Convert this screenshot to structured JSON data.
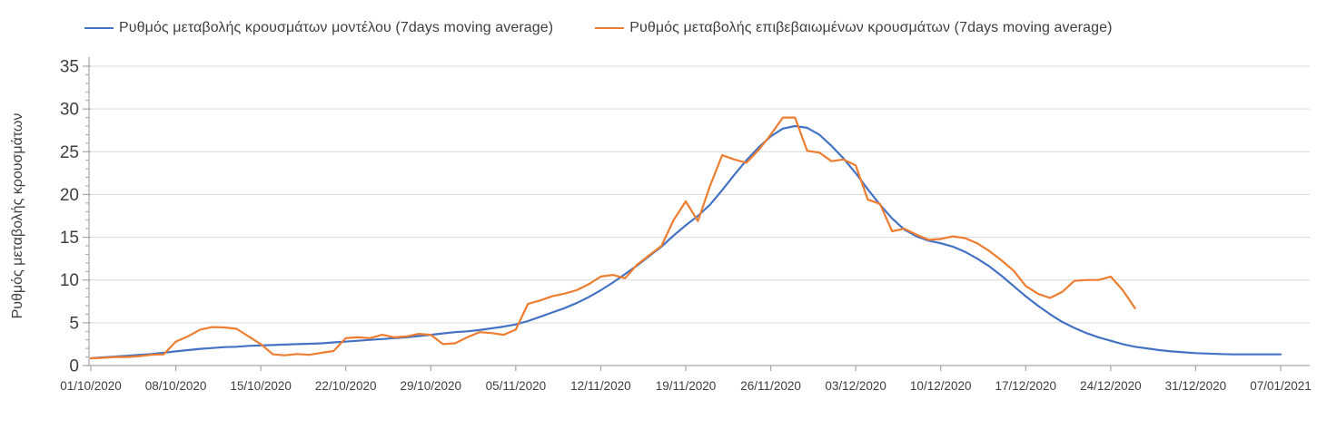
{
  "chart_data": {
    "type": "line",
    "title": "",
    "xlabel": "",
    "ylabel": "Ρυθμός μεταβολής κρουσμάτων",
    "ylim": [
      0,
      35
    ],
    "y_ticks": [
      0,
      5,
      10,
      15,
      20,
      25,
      30,
      35
    ],
    "y_minor_tick_step": 1,
    "x_tick_labels": [
      "01/10/2020",
      "08/10/2020",
      "15/10/2020",
      "22/10/2020",
      "29/10/2020",
      "05/11/2020",
      "12/11/2020",
      "19/11/2020",
      "26/11/2020",
      "03/12/2020",
      "10/12/2020",
      "17/12/2020",
      "24/12/2020",
      "31/12/2020",
      "07/01/2021"
    ],
    "x_days_per_tick": 7,
    "x_total_days": 98,
    "grid": "horizontal-major-only",
    "legend_position": "top-left",
    "grid_color": "#d9d9d9",
    "axis_color": "#a6a6a6",
    "text_color": "#3f3f3f",
    "series": [
      {
        "name": "Ρυθμός μεταβολής κρουσμάτων μοντέλου (7days moving average)",
        "color": "#4472c4",
        "start_date": "01/10/2020",
        "interval_days": 1,
        "values": [
          0.85,
          0.95,
          1.05,
          1.15,
          1.25,
          1.35,
          1.5,
          1.65,
          1.8,
          1.95,
          2.05,
          2.15,
          2.2,
          2.3,
          2.35,
          2.4,
          2.45,
          2.5,
          2.55,
          2.6,
          2.7,
          2.8,
          2.9,
          3.0,
          3.1,
          3.2,
          3.3,
          3.45,
          3.6,
          3.75,
          3.9,
          4.0,
          4.15,
          4.35,
          4.55,
          4.8,
          5.2,
          5.7,
          6.2,
          6.7,
          7.3,
          8.0,
          8.8,
          9.7,
          10.7,
          11.7,
          12.8,
          13.9,
          15.2,
          16.4,
          17.5,
          18.8,
          20.5,
          22.3,
          24.0,
          25.5,
          26.8,
          27.7,
          28.0,
          27.8,
          27.0,
          25.7,
          24.2,
          22.5,
          20.6,
          18.8,
          17.2,
          15.9,
          15.1,
          14.6,
          14.3,
          13.9,
          13.3,
          12.5,
          11.6,
          10.5,
          9.3,
          8.1,
          7.0,
          6.0,
          5.1,
          4.4,
          3.8,
          3.3,
          2.9,
          2.5,
          2.2,
          2.0,
          1.8,
          1.65,
          1.55,
          1.45,
          1.4,
          1.35,
          1.3,
          1.3,
          1.3,
          1.3,
          1.3
        ]
      },
      {
        "name": "Ρυθμός μεταβολής επιβεβαιωμένων κρουσμάτων (7days moving average)",
        "color": "#ed7d31",
        "start_date": "01/10/2020",
        "interval_days": 1,
        "values": [
          0.85,
          0.9,
          1.0,
          1.0,
          1.1,
          1.25,
          1.3,
          2.8,
          3.4,
          4.2,
          4.5,
          4.45,
          4.3,
          3.4,
          2.5,
          1.3,
          1.2,
          1.35,
          1.25,
          1.5,
          1.7,
          3.2,
          3.3,
          3.2,
          3.6,
          3.3,
          3.4,
          3.7,
          3.6,
          2.5,
          2.6,
          3.3,
          3.9,
          3.8,
          3.6,
          4.2,
          7.2,
          7.6,
          8.1,
          8.4,
          8.8,
          9.5,
          10.4,
          10.6,
          10.2,
          11.8,
          12.9,
          14.0,
          17.0,
          19.2,
          16.9,
          21.0,
          24.6,
          24.1,
          23.7,
          25.2,
          27.0,
          29.0,
          29.0,
          25.1,
          24.9,
          23.9,
          24.1,
          23.4,
          19.4,
          18.9,
          15.7,
          16.0,
          15.3,
          14.7,
          14.8,
          15.1,
          14.9,
          14.3,
          13.4,
          12.3,
          11.1,
          9.3,
          8.4,
          7.9,
          8.6,
          9.9,
          10.0,
          10.0,
          10.4,
          8.8,
          6.7
        ]
      }
    ]
  }
}
